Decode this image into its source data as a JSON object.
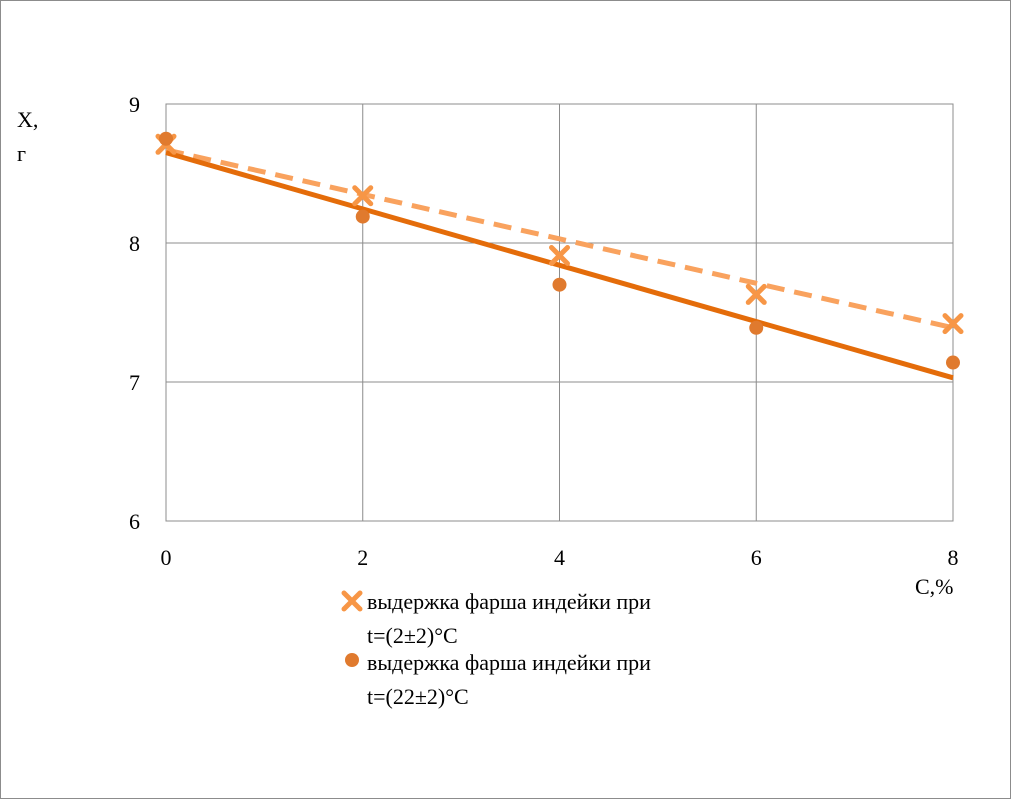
{
  "chart_data": {
    "type": "scatter",
    "xlabel": "C,%",
    "ylabel_lines": [
      "X,",
      "г"
    ],
    "xlim": [
      0,
      8
    ],
    "ylim": [
      6,
      9
    ],
    "x_ticks": [
      0,
      2,
      4,
      6,
      8
    ],
    "y_ticks": [
      6,
      7,
      8,
      9
    ],
    "grid": true,
    "legend_position": "bottom",
    "series": [
      {
        "name_lines": [
          "выдержка фарша индейки при",
          "t=(2±2)°С"
        ],
        "marker": "x",
        "color": "#F79646",
        "x": [
          0,
          2,
          4,
          6,
          8
        ],
        "y": [
          8.71,
          8.34,
          7.91,
          7.63,
          7.42
        ],
        "trendline": {
          "style": "dashed",
          "color": "#F9A25E",
          "y_start": 8.67,
          "y_end": 7.39
        }
      },
      {
        "name_lines": [
          "выдержка фарша индейки при",
          "t=(22±2)°С"
        ],
        "marker": "circle",
        "color": "#E07A2E",
        "x": [
          0,
          2,
          4,
          6,
          8
        ],
        "y": [
          8.75,
          8.19,
          7.7,
          7.39,
          7.14
        ],
        "trendline": {
          "style": "solid",
          "color": "#E46C0A",
          "y_start": 8.65,
          "y_end": 7.03
        }
      }
    ]
  }
}
